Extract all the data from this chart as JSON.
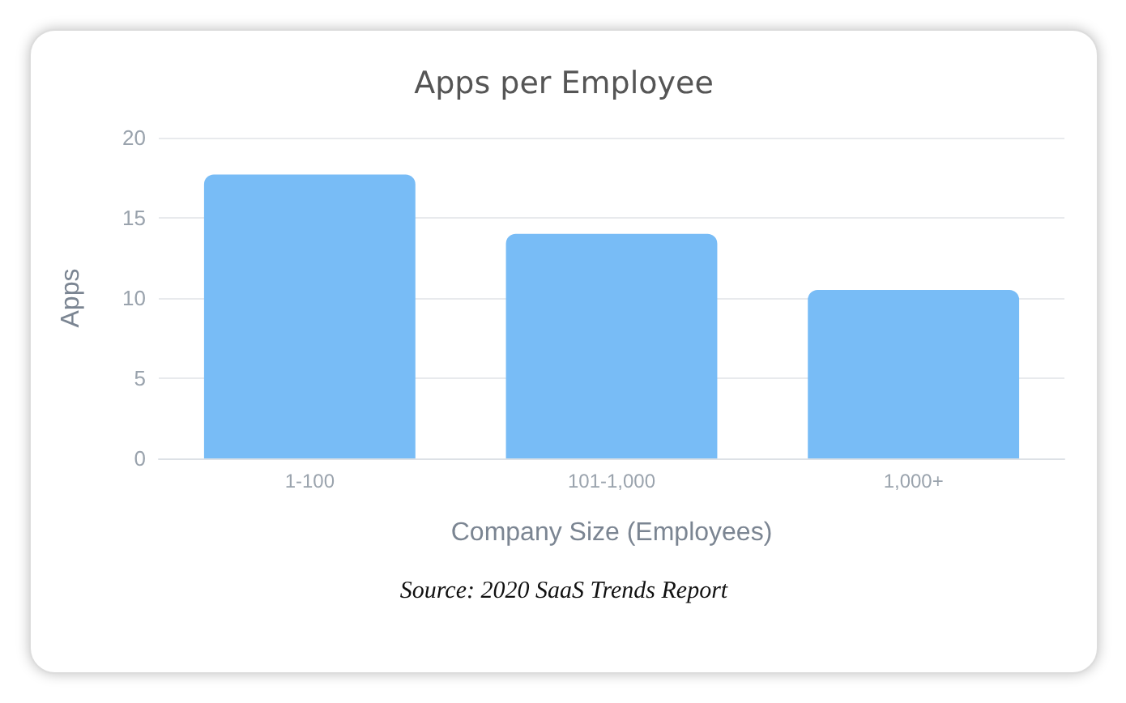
{
  "chart_data": {
    "type": "bar",
    "title": "Apps per Employee",
    "xlabel": "Company Size (Employees)",
    "ylabel": "Apps",
    "categories": [
      "1-100",
      "101-1,000",
      "1,000+"
    ],
    "values": [
      17.7,
      14.0,
      10.5
    ],
    "color": "#78bcf6",
    "ylim": [
      0,
      20
    ],
    "yticks": [
      0,
      5,
      10,
      15,
      20
    ],
    "grid": "y",
    "annotations": [
      "Source: 2020 SaaS Trends Report"
    ]
  }
}
